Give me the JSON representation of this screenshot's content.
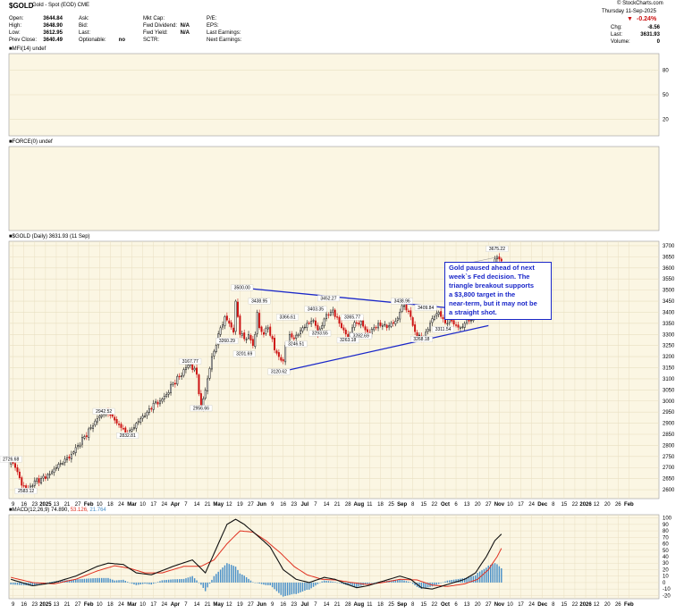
{
  "header": {
    "symbol": "$GOLD",
    "name": "Gold - Spot (EOD) CME",
    "watermark": "© StockCharts.com",
    "date": "Thursday 11-Sep-2025",
    "change_pct": "-0.24%",
    "chg_label": "Chg:",
    "chg_value": "-8.56",
    "last_label": "Last:",
    "last_value": "3631.93",
    "volume_label": "Volume:",
    "volume_value": "0",
    "col1": [
      {
        "label": "Open:",
        "value": "3644.84"
      },
      {
        "label": "High:",
        "value": "3648.90"
      },
      {
        "label": "Low:",
        "value": "3612.95"
      },
      {
        "label": "Prev Close:",
        "value": "3640.49"
      }
    ],
    "col2": [
      {
        "label": "Ask:",
        "value": ""
      },
      {
        "label": "Bid:",
        "value": ""
      },
      {
        "label": "Last:",
        "value": ""
      },
      {
        "label": "Optionable:",
        "value": "no"
      }
    ],
    "col3": [
      {
        "label": "Mkt Cap:",
        "value": ""
      },
      {
        "label": "Fwd Dividend:",
        "value": "N/A"
      },
      {
        "label": "Fwd Yield:",
        "value": "N/A"
      },
      {
        "label": "SCTR:",
        "value": ""
      }
    ],
    "col4": [
      {
        "label": "P/E:"
      },
      {
        "label": "EPS:"
      },
      {
        "label": "Last Earnings:"
      },
      {
        "label": "Next Earnings:"
      }
    ]
  },
  "colors": {
    "panel_bg": "#fbf6e3",
    "grid": "#e8dfc2",
    "up_candle": "#111111",
    "down_candle": "#cc1111",
    "trendline": "#1a27c9",
    "annotation_text": "#1a27c9",
    "macd_line": "#111111",
    "signal_line": "#e03020",
    "histogram": "#4a90c8"
  },
  "chart_data": [
    {
      "type": "line",
      "panel": "MFI",
      "title": "MFI(14) undef",
      "yticks": [
        80,
        50,
        20
      ],
      "ylim": [
        0,
        100
      ]
    },
    {
      "type": "line",
      "panel": "FORCE",
      "title": "FORCE(0) undef"
    },
    {
      "type": "candlestick",
      "panel": "price",
      "title": "$GOLD (Daily) 3631.93 (11 Sep)",
      "ylim": [
        2560,
        3720
      ],
      "yticks": [
        2600,
        2650,
        2700,
        2750,
        2800,
        2850,
        2900,
        2950,
        3000,
        3050,
        3100,
        3150,
        3200,
        3250,
        3300,
        3350,
        3400,
        3450,
        3500,
        3550,
        3600,
        3650,
        3700
      ],
      "x_labels": [
        "9",
        "16",
        "23",
        "2025",
        "13",
        "21",
        "27",
        "Feb",
        "10",
        "18",
        "24",
        "Mar",
        "10",
        "17",
        "24",
        "Apr",
        "7",
        "14",
        "21",
        "May",
        "12",
        "19",
        "27",
        "Jun",
        "9",
        "16",
        "23",
        "Jul",
        "7",
        "14",
        "21",
        "28",
        "Aug",
        "11",
        "18",
        "25",
        "Sep",
        "8",
        "15",
        "22",
        "Oct",
        "6",
        "13",
        "20",
        "27",
        "Nov",
        "10",
        "17",
        "24",
        "Dec",
        "8",
        "15",
        "22",
        "2026",
        "12",
        "20",
        "26",
        "Feb"
      ],
      "bold_x_labels": [
        "2025",
        "Feb",
        "Mar",
        "Apr",
        "May",
        "Jun",
        "Jul",
        "Aug",
        "Sep",
        "Oct",
        "Nov",
        "Dec",
        "2026",
        "Feb"
      ],
      "anchor_closes": [
        [
          0,
          2726
        ],
        [
          2,
          2700
        ],
        [
          5,
          2620
        ],
        [
          8,
          2600
        ],
        [
          11,
          2640
        ],
        [
          14,
          2650
        ],
        [
          18,
          2670
        ],
        [
          21,
          2700
        ],
        [
          24,
          2720
        ],
        [
          28,
          2760
        ],
        [
          31,
          2800
        ],
        [
          34,
          2840
        ],
        [
          37,
          2880
        ],
        [
          40,
          2920
        ],
        [
          43,
          2942
        ],
        [
          46,
          2935
        ],
        [
          49,
          2900
        ],
        [
          51,
          2880
        ],
        [
          54,
          2845
        ],
        [
          57,
          2880
        ],
        [
          60,
          2920
        ],
        [
          63,
          2950
        ],
        [
          66,
          2990
        ],
        [
          69,
          3000
        ],
        [
          72,
          3030
        ],
        [
          75,
          3080
        ],
        [
          78,
          3110
        ],
        [
          81,
          3150
        ],
        [
          83,
          3167
        ],
        [
          86,
          3120
        ],
        [
          88,
          2970
        ],
        [
          89,
          3010
        ],
        [
          91,
          3100
        ],
        [
          93,
          3200
        ],
        [
          95,
          3250
        ],
        [
          97,
          3330
        ],
        [
          99,
          3380
        ],
        [
          101,
          3350
        ],
        [
          103,
          3310
        ],
        [
          104,
          3450
        ],
        [
          105,
          3380
        ],
        [
          106,
          3300
        ],
        [
          108,
          3280
        ],
        [
          110,
          3300
        ],
        [
          112,
          3250
        ],
        [
          113,
          3300
        ],
        [
          114,
          3400
        ],
        [
          115,
          3330
        ],
        [
          117,
          3300
        ],
        [
          119,
          3330
        ],
        [
          121,
          3280
        ],
        [
          122,
          3230
        ],
        [
          124,
          3200
        ],
        [
          126,
          3180
        ],
        [
          127,
          3250
        ],
        [
          129,
          3300
        ],
        [
          131,
          3280
        ],
        [
          133,
          3300
        ],
        [
          135,
          3330
        ],
        [
          137,
          3350
        ],
        [
          139,
          3360
        ],
        [
          141,
          3340
        ],
        [
          142,
          3300
        ],
        [
          144,
          3340
        ],
        [
          146,
          3390
        ],
        [
          148,
          3400
        ],
        [
          149,
          3410
        ],
        [
          150,
          3380
        ],
        [
          152,
          3350
        ],
        [
          154,
          3320
        ],
        [
          156,
          3290
        ],
        [
          158,
          3330
        ],
        [
          160,
          3350
        ],
        [
          162,
          3360
        ],
        [
          164,
          3320
        ],
        [
          166,
          3300
        ],
        [
          168,
          3330
        ],
        [
          170,
          3350
        ],
        [
          172,
          3340
        ],
        [
          174,
          3330
        ],
        [
          176,
          3350
        ],
        [
          178,
          3360
        ],
        [
          180,
          3400
        ],
        [
          182,
          3430
        ],
        [
          183,
          3410
        ],
        [
          185,
          3380
        ],
        [
          186,
          3340
        ],
        [
          188,
          3290
        ],
        [
          190,
          3280
        ],
        [
          192,
          3310
        ],
        [
          194,
          3350
        ],
        [
          196,
          3380
        ],
        [
          198,
          3400
        ],
        [
          200,
          3370
        ],
        [
          202,
          3350
        ],
        [
          204,
          3360
        ],
        [
          206,
          3340
        ],
        [
          208,
          3330
        ],
        [
          210,
          3350
        ],
        [
          212,
          3360
        ],
        [
          214,
          3380
        ],
        [
          216,
          3400
        ],
        [
          218,
          3420
        ],
        [
          219,
          3450
        ],
        [
          220,
          3480
        ],
        [
          221,
          3540
        ],
        [
          222,
          3580
        ],
        [
          223,
          3595
        ],
        [
          224,
          3640
        ],
        [
          225,
          3650
        ],
        [
          226,
          3640
        ],
        [
          227,
          3631
        ]
      ],
      "series": [
        {
          "name": "Upper trendline",
          "points": [
            [
              107,
              3510
            ],
            [
              213,
              3410
            ]
          ]
        },
        {
          "name": "Lower trendline",
          "points": [
            [
              124,
              3130
            ],
            [
              221,
              3340
            ]
          ]
        }
      ],
      "price_labels": [
        {
          "i": 0,
          "v": 2726.68,
          "text": "2726.68"
        },
        {
          "i": 7,
          "v": 2583.12,
          "text": "2583.12"
        },
        {
          "i": 43,
          "v": 2942.52,
          "text": "2942.52"
        },
        {
          "i": 54,
          "v": 2832.81,
          "text": "2832.81"
        },
        {
          "i": 83,
          "v": 3167.77,
          "text": "3167.77"
        },
        {
          "i": 88,
          "v": 2956.66,
          "text": "2956.66"
        },
        {
          "i": 107,
          "v": 3500.0,
          "text": "3500.00"
        },
        {
          "i": 115,
          "v": 3438.95,
          "text": "3438.95"
        },
        {
          "i": 100,
          "v": 3260.29,
          "text": "3260.29"
        },
        {
          "i": 108,
          "v": 3201.69,
          "text": "3201.69"
        },
        {
          "i": 124,
          "v": 3120.62,
          "text": "3120.62"
        },
        {
          "i": 128,
          "v": 3366.61,
          "text": "3366.61"
        },
        {
          "i": 132,
          "v": 3246.51,
          "text": "3246.51"
        },
        {
          "i": 141,
          "v": 3403.35,
          "text": "3403.35"
        },
        {
          "i": 147,
          "v": 3452.27,
          "text": "3452.27"
        },
        {
          "i": 143,
          "v": 3293.55,
          "text": "3293.55"
        },
        {
          "i": 158,
          "v": 3365.77,
          "text": "3365.77"
        },
        {
          "i": 162,
          "v": 3282.69,
          "text": "3282.69"
        },
        {
          "i": 156,
          "v": 3263.18,
          "text": "3263.18"
        },
        {
          "i": 181,
          "v": 3438.96,
          "text": "3438.96"
        },
        {
          "i": 190,
          "v": 3268.18,
          "text": "3268.18"
        },
        {
          "i": 192,
          "v": 3409.84,
          "text": "3409.84"
        },
        {
          "i": 200,
          "v": 3311.54,
          "text": "3311.54"
        },
        {
          "i": 225,
          "v": 3675.22,
          "text": "3675.22"
        }
      ],
      "annotation": {
        "text_lines": [
          "Gold paused ahead of next",
          "week`s Fed decision. The",
          "triangle breakout supports",
          "a $3,800 target in the",
          "near-term, but it may not be",
          "a straight shot."
        ]
      }
    },
    {
      "type": "line",
      "panel": "MACD",
      "title": "MACD(12,26,9) 74.890, 53.126, 21.764",
      "title_parts": {
        "label": "MACD(12,26,9)",
        "macd": "74.890,",
        "signal": "53.126,",
        "hist": "21.764"
      },
      "ylim": [
        -25,
        105
      ],
      "yticks": [
        100,
        90,
        80,
        70,
        60,
        50,
        40,
        30,
        20,
        10,
        0,
        -10,
        -20
      ],
      "macd_anchors": [
        [
          0,
          5
        ],
        [
          10,
          -5
        ],
        [
          20,
          0
        ],
        [
          30,
          10
        ],
        [
          40,
          25
        ],
        [
          45,
          30
        ],
        [
          52,
          28
        ],
        [
          58,
          15
        ],
        [
          65,
          12
        ],
        [
          75,
          25
        ],
        [
          84,
          35
        ],
        [
          90,
          15
        ],
        [
          96,
          60
        ],
        [
          100,
          90
        ],
        [
          104,
          98
        ],
        [
          108,
          90
        ],
        [
          115,
          70
        ],
        [
          120,
          55
        ],
        [
          126,
          20
        ],
        [
          132,
          5
        ],
        [
          138,
          0
        ],
        [
          145,
          8
        ],
        [
          150,
          5
        ],
        [
          155,
          -2
        ],
        [
          160,
          -8
        ],
        [
          165,
          -5
        ],
        [
          170,
          0
        ],
        [
          175,
          5
        ],
        [
          180,
          10
        ],
        [
          185,
          5
        ],
        [
          190,
          -8
        ],
        [
          195,
          -10
        ],
        [
          200,
          -5
        ],
        [
          205,
          0
        ],
        [
          210,
          5
        ],
        [
          215,
          15
        ],
        [
          220,
          40
        ],
        [
          224,
          65
        ],
        [
          227,
          75
        ]
      ],
      "signal_anchors": [
        [
          0,
          8
        ],
        [
          10,
          0
        ],
        [
          20,
          -2
        ],
        [
          30,
          5
        ],
        [
          40,
          18
        ],
        [
          48,
          26
        ],
        [
          55,
          22
        ],
        [
          62,
          15
        ],
        [
          70,
          15
        ],
        [
          80,
          25
        ],
        [
          88,
          25
        ],
        [
          94,
          35
        ],
        [
          100,
          60
        ],
        [
          106,
          80
        ],
        [
          112,
          78
        ],
        [
          118,
          65
        ],
        [
          125,
          45
        ],
        [
          131,
          25
        ],
        [
          137,
          12
        ],
        [
          144,
          5
        ],
        [
          150,
          4
        ],
        [
          158,
          0
        ],
        [
          165,
          -3
        ],
        [
          172,
          0
        ],
        [
          180,
          5
        ],
        [
          188,
          4
        ],
        [
          195,
          -4
        ],
        [
          202,
          -6
        ],
        [
          210,
          -2
        ],
        [
          216,
          5
        ],
        [
          221,
          20
        ],
        [
          225,
          40
        ],
        [
          227,
          53
        ]
      ]
    }
  ]
}
